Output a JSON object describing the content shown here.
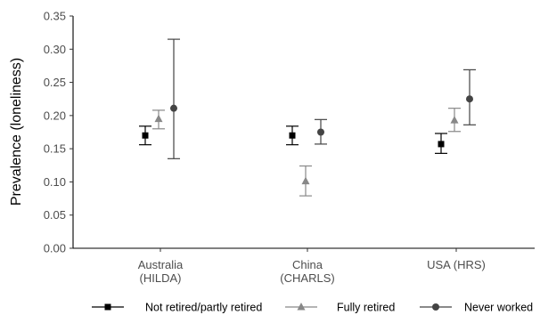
{
  "chart_data": {
    "type": "scatter",
    "title": "",
    "xlabel": "",
    "ylabel": "Prevalence (loneliness)",
    "ylim": [
      0,
      0.35
    ],
    "yticks": [
      "0.00",
      "0.05",
      "0.10",
      "0.15",
      "0.20",
      "0.25",
      "0.30",
      "0.35"
    ],
    "categories": [
      {
        "line1": "Australia",
        "line2": "(HILDA)"
      },
      {
        "line1": "China",
        "line2": "(CHARLS)"
      },
      {
        "line1": "USA (HRS)",
        "line2": ""
      }
    ],
    "grid": false,
    "legend_position": "bottom",
    "series": [
      {
        "name": "Not retired/partly retired",
        "marker": "square",
        "color": "#000000",
        "values": [
          0.17,
          0.17,
          0.157
        ],
        "lower": [
          0.156,
          0.156,
          0.143
        ],
        "upper": [
          0.184,
          0.184,
          0.173
        ]
      },
      {
        "name": "Fully retired",
        "marker": "triangle",
        "color": "#888888",
        "values": [
          0.195,
          0.101,
          0.193
        ],
        "lower": [
          0.18,
          0.079,
          0.176
        ],
        "upper": [
          0.208,
          0.124,
          0.211
        ]
      },
      {
        "name": "Never worked",
        "marker": "circle",
        "color": "#444444",
        "values": [
          0.211,
          0.175,
          0.225
        ],
        "lower": [
          0.135,
          0.157,
          0.186
        ],
        "upper": [
          0.315,
          0.194,
          0.269
        ]
      }
    ]
  }
}
